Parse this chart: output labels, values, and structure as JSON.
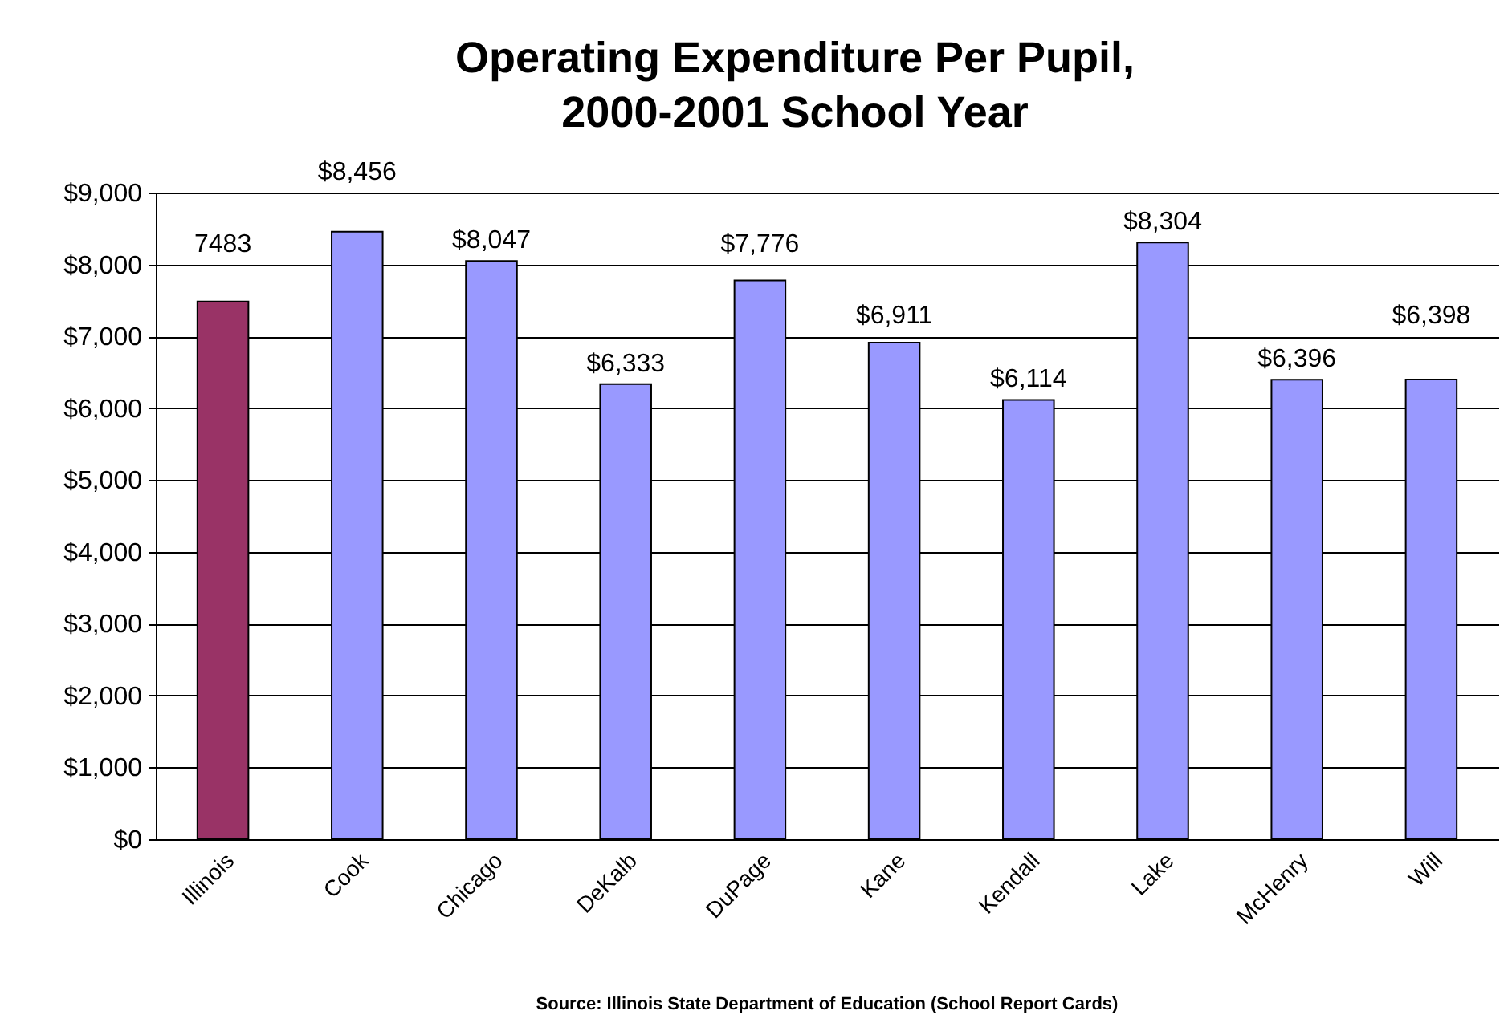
{
  "chart_data": {
    "type": "bar",
    "title": "Operating Expenditure Per Pupil,\n2000-2001 School Year",
    "categories": [
      "Illinois",
      "Cook",
      "Chicago",
      "DeKalb",
      "DuPage",
      "Kane",
      "Kendall",
      "Lake",
      "McHenry",
      "Will"
    ],
    "values": [
      7483,
      8456,
      8047,
      6333,
      7776,
      6911,
      6114,
      8304,
      6396,
      6398
    ],
    "value_labels": [
      "7483",
      "$8,456",
      "$8,047",
      "$6,333",
      "$7,776",
      "$6,911",
      "$6,114",
      "$8,304",
      "$6,396",
      "$6,398"
    ],
    "colors": [
      "#993366",
      "#9999ff",
      "#9999ff",
      "#9999ff",
      "#9999ff",
      "#9999ff",
      "#9999ff",
      "#9999ff",
      "#9999ff",
      "#9999ff"
    ],
    "ylim": [
      0,
      9000
    ],
    "yticks": [
      {
        "value": 0,
        "label": "$0"
      },
      {
        "value": 1000,
        "label": "$1,000"
      },
      {
        "value": 2000,
        "label": "$2,000"
      },
      {
        "value": 3000,
        "label": "$3,000"
      },
      {
        "value": 4000,
        "label": "$4,000"
      },
      {
        "value": 5000,
        "label": "$5,000"
      },
      {
        "value": 6000,
        "label": "$6,000"
      },
      {
        "value": 7000,
        "label": "$7,000"
      },
      {
        "value": 8000,
        "label": "$8,000"
      },
      {
        "value": 9000,
        "label": "$9,000"
      }
    ],
    "grid": "y",
    "annotations": [
      "Source: Illinois State Department of Education (School Report Cards)"
    ]
  }
}
